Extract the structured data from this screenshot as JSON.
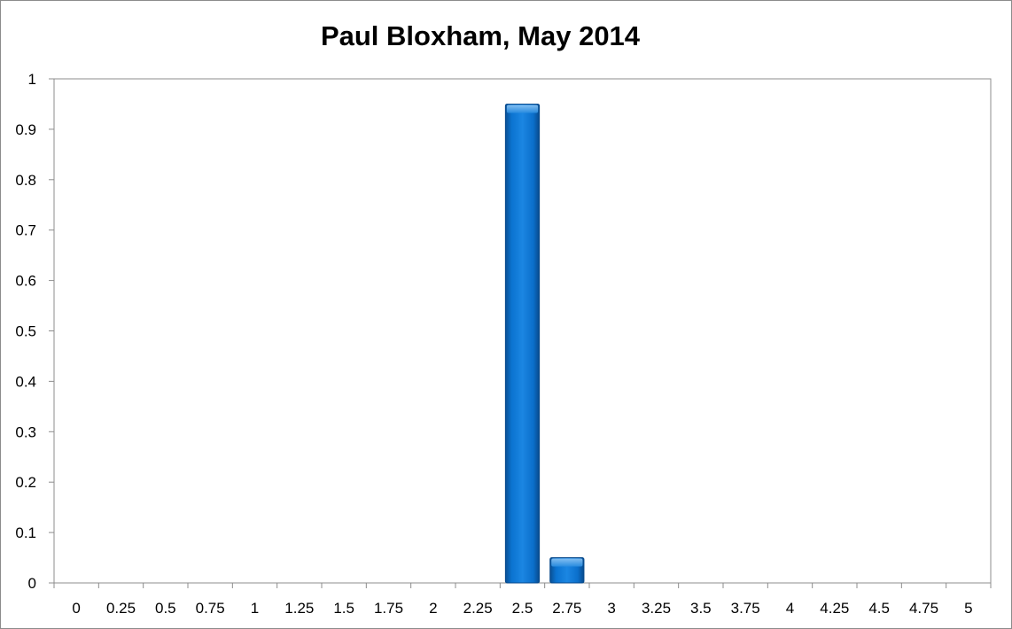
{
  "chart_data": {
    "type": "bar",
    "title": "Paul Bloxham, May 2014",
    "xlabel": "",
    "ylabel": "",
    "categories": [
      "0",
      "0.25",
      "0.5",
      "0.75",
      "1",
      "1.25",
      "1.5",
      "1.75",
      "2",
      "2.25",
      "2.5",
      "2.75",
      "3",
      "3.25",
      "3.5",
      "3.75",
      "4",
      "4.25",
      "4.5",
      "4.75",
      "5"
    ],
    "values": [
      0,
      0,
      0,
      0,
      0,
      0,
      0,
      0,
      0,
      0,
      0.95,
      0.05,
      0,
      0,
      0,
      0,
      0,
      0,
      0,
      0,
      0
    ],
    "ylim": [
      0,
      1
    ],
    "yticks": [
      "0",
      "0.1",
      "0.2",
      "0.3",
      "0.4",
      "0.5",
      "0.6",
      "0.7",
      "0.8",
      "0.9",
      "1"
    ],
    "grid": false,
    "legend": "none",
    "bar_color": "#0a6fc9"
  }
}
